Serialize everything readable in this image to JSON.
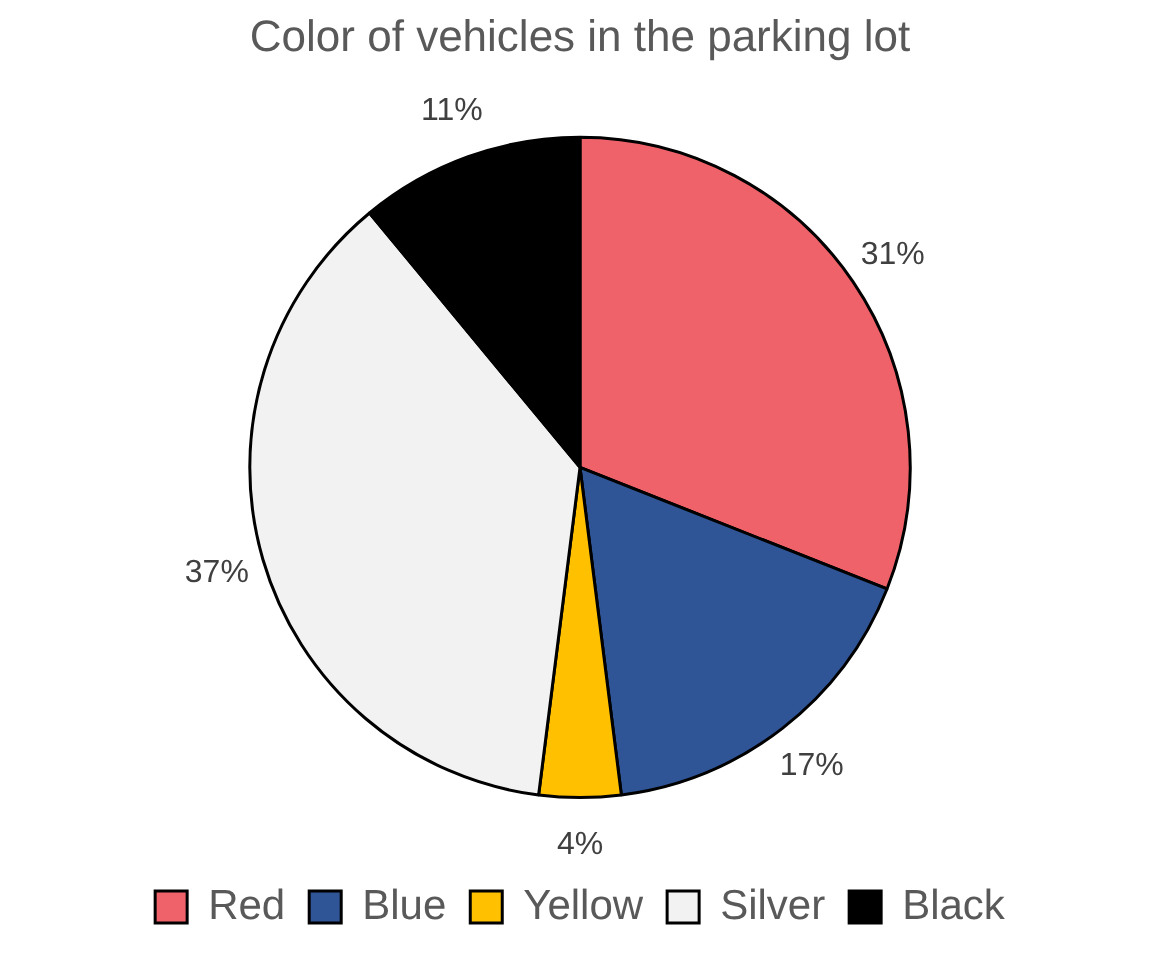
{
  "chart_data": {
    "type": "pie",
    "title": "Color of vehicles in the parking lot",
    "categories": [
      "Red",
      "Blue",
      "Yellow",
      "Silver",
      "Black"
    ],
    "values": [
      31,
      17,
      4,
      37,
      11
    ],
    "colors": [
      "#f0626a",
      "#2f5597",
      "#ffc000",
      "#f2f2f2",
      "#000000"
    ],
    "value_labels": [
      "31%",
      "17%",
      "4%",
      "37%",
      "11%"
    ],
    "legend": "bottom"
  }
}
